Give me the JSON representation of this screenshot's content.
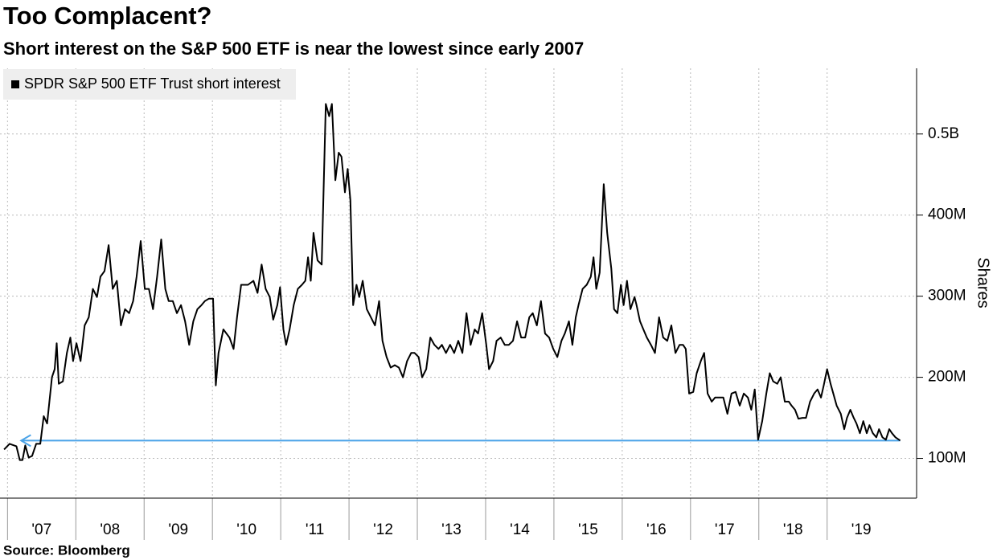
{
  "chart_data": {
    "type": "line",
    "title": "Too Complacent?",
    "subtitle": "Short interest on the S&P 500 ETF is near the lowest since early 2007",
    "y_label": "Shares",
    "source": "Source: Bloomberg",
    "xlim": [
      2006.89,
      2020.31
    ],
    "ylim": [
      51,
      581
    ],
    "yticks": [
      {
        "value": 100,
        "label": "100M"
      },
      {
        "value": 200,
        "label": "200M"
      },
      {
        "value": 300,
        "label": "300M"
      },
      {
        "value": 400,
        "label": "400M"
      },
      {
        "value": 500,
        "label": "0.5B"
      }
    ],
    "xticks": [
      {
        "value": 2007,
        "label": "'07"
      },
      {
        "value": 2008,
        "label": "'08"
      },
      {
        "value": 2009,
        "label": "'09"
      },
      {
        "value": 2010,
        "label": "'10"
      },
      {
        "value": 2011,
        "label": "'11"
      },
      {
        "value": 2012,
        "label": "'12"
      },
      {
        "value": 2013,
        "label": "'13"
      },
      {
        "value": 2014,
        "label": "'14"
      },
      {
        "value": 2015,
        "label": "'15"
      },
      {
        "value": 2016,
        "label": "'16"
      },
      {
        "value": 2017,
        "label": "'17"
      },
      {
        "value": 2018,
        "label": "'18"
      },
      {
        "value": 2019,
        "label": "'19"
      }
    ],
    "grid": true,
    "legend": "top-left",
    "arrow": {
      "y": 122,
      "x": [
        2020.07,
        2007.2
      ],
      "color": "#4aa3e8"
    },
    "series": [
      {
        "name": "SPDR S&P 500 ETF Trust short interest",
        "color": "#000000",
        "x": [
          2006.95,
          2007.03,
          2007.13,
          2007.18,
          2007.22,
          2007.26,
          2007.31,
          2007.36,
          2007.42,
          2007.48,
          2007.53,
          2007.58,
          2007.65,
          2007.69,
          2007.72,
          2007.75,
          2007.81,
          2007.87,
          2007.92,
          2007.96,
          2008.01,
          2008.07,
          2008.13,
          2008.19,
          2008.25,
          2008.31,
          2008.36,
          2008.42,
          2008.48,
          2008.54,
          2008.6,
          2008.66,
          2008.72,
          2008.78,
          2008.84,
          2008.89,
          2008.95,
          2009.01,
          2009.07,
          2009.13,
          2009.19,
          2009.25,
          2009.31,
          2009.36,
          2009.42,
          2009.48,
          2009.54,
          2009.6,
          2009.66,
          2009.72,
          2009.78,
          2009.84,
          2009.89,
          2009.95,
          2010.01,
          2010.05,
          2010.09,
          2010.16,
          2010.25,
          2010.31,
          2010.36,
          2010.42,
          2010.52,
          2010.6,
          2010.66,
          2010.72,
          2010.78,
          2010.84,
          2010.89,
          2010.95,
          2010.99,
          2011.04,
          2011.08,
          2011.13,
          2011.19,
          2011.25,
          2011.31,
          2011.36,
          2011.4,
          2011.44,
          2011.48,
          2011.54,
          2011.6,
          2011.66,
          2011.71,
          2011.75,
          2011.8,
          2011.85,
          2011.89,
          2011.94,
          2011.98,
          2012.02,
          2012.06,
          2012.11,
          2012.15,
          2012.2,
          2012.26,
          2012.32,
          2012.38,
          2012.44,
          2012.49,
          2012.55,
          2012.61,
          2012.67,
          2012.73,
          2012.79,
          2012.85,
          2012.91,
          2012.96,
          2013.02,
          2013.07,
          2013.13,
          2013.19,
          2013.25,
          2013.31,
          2013.36,
          2013.42,
          2013.48,
          2013.54,
          2013.6,
          2013.66,
          2013.72,
          2013.78,
          2013.84,
          2013.89,
          2013.95,
          2014.01,
          2014.05,
          2014.11,
          2014.16,
          2014.22,
          2014.28,
          2014.34,
          2014.4,
          2014.46,
          2014.52,
          2014.58,
          2014.64,
          2014.69,
          2014.75,
          2014.81,
          2014.87,
          2014.93,
          2014.99,
          2015.05,
          2015.11,
          2015.16,
          2015.22,
          2015.27,
          2015.32,
          2015.36,
          2015.42,
          2015.48,
          2015.54,
          2015.58,
          2015.62,
          2015.67,
          2015.73,
          2015.78,
          2015.84,
          2015.88,
          2015.93,
          2015.98,
          2016.02,
          2016.07,
          2016.12,
          2016.18,
          2016.21,
          2016.26,
          2016.31,
          2016.36,
          2016.42,
          2016.48,
          2016.54,
          2016.6,
          2016.66,
          2016.72,
          2016.78,
          2016.84,
          2016.89,
          2016.93,
          2016.98,
          2017.04,
          2017.09,
          2017.15,
          2017.2,
          2017.25,
          2017.31,
          2017.36,
          2017.42,
          2017.48,
          2017.54,
          2017.6,
          2017.66,
          2017.72,
          2017.78,
          2017.84,
          2017.89,
          2017.94,
          2017.99,
          2018.05,
          2018.11,
          2018.16,
          2018.21,
          2018.27,
          2018.32,
          2018.38,
          2018.44,
          2018.48,
          2018.53,
          2018.58,
          2018.64,
          2018.69,
          2018.75,
          2018.81,
          2018.86,
          2018.91,
          2018.95,
          2019.0,
          2019.05,
          2019.09,
          2019.14,
          2019.2,
          2019.25,
          2019.29,
          2019.34,
          2019.39,
          2019.43,
          2019.48,
          2019.53,
          2019.58,
          2019.62,
          2019.67,
          2019.72,
          2019.76,
          2019.81,
          2019.86,
          2019.91,
          2019.95,
          2020.0,
          2020.07
        ],
        "values": [
          111,
          118,
          115,
          98,
          98,
          116,
          101,
          103,
          118,
          118,
          152,
          143,
          200,
          210,
          242,
          192,
          195,
          230,
          249,
          220,
          242,
          220,
          264,
          274,
          309,
          299,
          324,
          331,
          363,
          309,
          319,
          264,
          284,
          279,
          294,
          324,
          368,
          309,
          309,
          284,
          324,
          370,
          309,
          294,
          294,
          279,
          289,
          269,
          240,
          269,
          284,
          289,
          294,
          297,
          297,
          190,
          230,
          259,
          249,
          235,
          274,
          314,
          314,
          319,
          304,
          339,
          309,
          299,
          271,
          289,
          311,
          259,
          240,
          259,
          289,
          309,
          314,
          319,
          348,
          319,
          378,
          344,
          339,
          537,
          522,
          537,
          443,
          477,
          472,
          428,
          457,
          418,
          289,
          314,
          299,
          319,
          284,
          274,
          264,
          294,
          245,
          225,
          212,
          215,
          212,
          200,
          220,
          230,
          230,
          225,
          200,
          210,
          249,
          240,
          235,
          240,
          230,
          240,
          230,
          245,
          230,
          279,
          240,
          259,
          254,
          279,
          240,
          210,
          220,
          245,
          249,
          240,
          240,
          245,
          269,
          249,
          249,
          274,
          279,
          264,
          294,
          254,
          249,
          235,
          225,
          245,
          254,
          269,
          240,
          274,
          289,
          309,
          314,
          324,
          348,
          309,
          329,
          438,
          378,
          334,
          284,
          279,
          314,
          289,
          319,
          284,
          299,
          289,
          269,
          259,
          249,
          240,
          230,
          274,
          249,
          245,
          264,
          230,
          240,
          240,
          235,
          180,
          182,
          205,
          220,
          230,
          180,
          170,
          175,
          175,
          175,
          155,
          180,
          182,
          165,
          180,
          175,
          160,
          185,
          123,
          146,
          180,
          205,
          195,
          192,
          200,
          170,
          170,
          165,
          160,
          149,
          150,
          150,
          170,
          180,
          185,
          175,
          190,
          210,
          192,
          180,
          165,
          155,
          136,
          150,
          160,
          150,
          143,
          131,
          146,
          131,
          141,
          131,
          126,
          136,
          126,
          123,
          136,
          131,
          126,
          122
        ]
      }
    ]
  }
}
